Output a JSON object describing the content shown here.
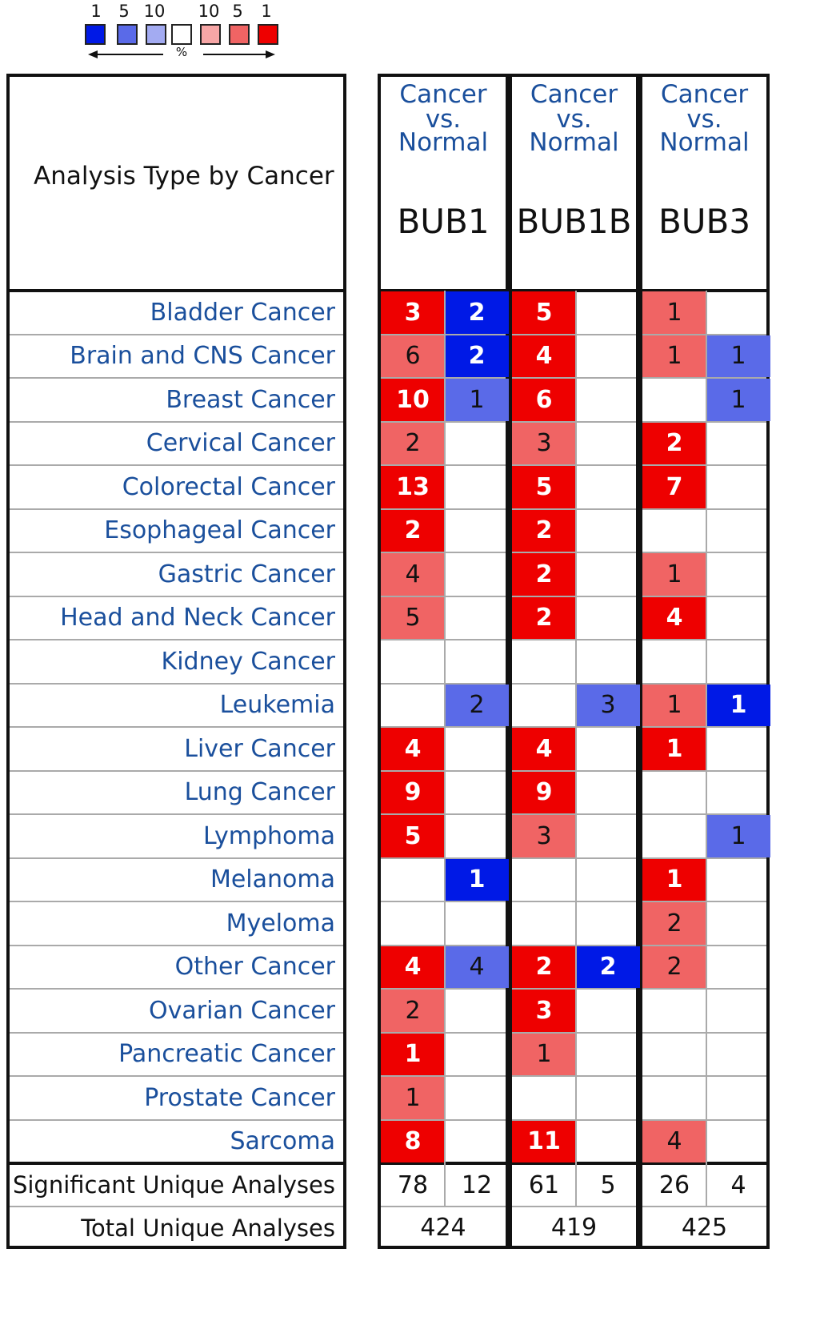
{
  "legend": {
    "left_numbers": [
      "1",
      "5",
      "10"
    ],
    "right_numbers": [
      "10",
      "5",
      "1"
    ],
    "axis_label": "%",
    "colors": [
      "#0019e6",
      "#5a6ae8",
      "#a3abf2",
      "#ffffff",
      "#f7a6a6",
      "#f06464",
      "#ee0000"
    ]
  },
  "header": {
    "title": "Analysis Type by Cancer",
    "columns": [
      {
        "line1": "Cancer",
        "line2": "vs.",
        "line3": "Normal",
        "gene": "BUB1"
      },
      {
        "line1": "Cancer",
        "line2": "vs.",
        "line3": "Normal",
        "gene": "BUB1B"
      },
      {
        "line1": "Cancer",
        "line2": "vs.",
        "line3": "Normal",
        "gene": "BUB3"
      }
    ]
  },
  "chart_data": {
    "type": "heatmap",
    "genes": [
      "BUB1",
      "BUB1B",
      "BUB3"
    ],
    "cell_colors": {
      "up_strong": "#ee0000",
      "up_medium": "#f06464",
      "down_strong": "#0019e6",
      "down_medium": "#5a6ae8"
    },
    "rows": [
      {
        "label": "Bladder Cancer",
        "cells": [
          [
            "3",
            "up_strong"
          ],
          [
            "2",
            "down_strong"
          ],
          [
            "5",
            "up_strong"
          ],
          [
            "",
            ""
          ],
          [
            "1",
            "up_medium"
          ],
          [
            "",
            ""
          ]
        ]
      },
      {
        "label": "Brain and CNS Cancer",
        "cells": [
          [
            "6",
            "up_medium"
          ],
          [
            "2",
            "down_strong"
          ],
          [
            "4",
            "up_strong"
          ],
          [
            "",
            ""
          ],
          [
            "1",
            "up_medium"
          ],
          [
            "1",
            "down_medium"
          ]
        ]
      },
      {
        "label": "Breast Cancer",
        "cells": [
          [
            "10",
            "up_strong"
          ],
          [
            "1",
            "down_medium"
          ],
          [
            "6",
            "up_strong"
          ],
          [
            "",
            ""
          ],
          [
            "",
            ""
          ],
          [
            "1",
            "down_medium"
          ]
        ]
      },
      {
        "label": "Cervical Cancer",
        "cells": [
          [
            "2",
            "up_medium"
          ],
          [
            "",
            ""
          ],
          [
            "3",
            "up_medium"
          ],
          [
            "",
            ""
          ],
          [
            "2",
            "up_strong"
          ],
          [
            "",
            ""
          ]
        ]
      },
      {
        "label": "Colorectal Cancer",
        "cells": [
          [
            "13",
            "up_strong"
          ],
          [
            "",
            ""
          ],
          [
            "5",
            "up_strong"
          ],
          [
            "",
            ""
          ],
          [
            "7",
            "up_strong"
          ],
          [
            "",
            ""
          ]
        ]
      },
      {
        "label": "Esophageal Cancer",
        "cells": [
          [
            "2",
            "up_strong"
          ],
          [
            "",
            ""
          ],
          [
            "2",
            "up_strong"
          ],
          [
            "",
            ""
          ],
          [
            "",
            ""
          ],
          [
            "",
            ""
          ]
        ]
      },
      {
        "label": "Gastric Cancer",
        "cells": [
          [
            "4",
            "up_medium"
          ],
          [
            "",
            ""
          ],
          [
            "2",
            "up_strong"
          ],
          [
            "",
            ""
          ],
          [
            "1",
            "up_medium"
          ],
          [
            "",
            ""
          ]
        ]
      },
      {
        "label": "Head and Neck Cancer",
        "cells": [
          [
            "5",
            "up_medium"
          ],
          [
            "",
            ""
          ],
          [
            "2",
            "up_strong"
          ],
          [
            "",
            ""
          ],
          [
            "4",
            "up_strong"
          ],
          [
            "",
            ""
          ]
        ]
      },
      {
        "label": "Kidney Cancer",
        "cells": [
          [
            "",
            ""
          ],
          [
            "",
            ""
          ],
          [
            "",
            ""
          ],
          [
            "",
            ""
          ],
          [
            "",
            ""
          ],
          [
            "",
            ""
          ]
        ]
      },
      {
        "label": "Leukemia",
        "cells": [
          [
            "",
            ""
          ],
          [
            "2",
            "down_medium"
          ],
          [
            "",
            ""
          ],
          [
            "3",
            "down_medium"
          ],
          [
            "1",
            "up_medium"
          ],
          [
            "1",
            "down_strong"
          ]
        ]
      },
      {
        "label": "Liver Cancer",
        "cells": [
          [
            "4",
            "up_strong"
          ],
          [
            "",
            ""
          ],
          [
            "4",
            "up_strong"
          ],
          [
            "",
            ""
          ],
          [
            "1",
            "up_strong"
          ],
          [
            "",
            ""
          ]
        ]
      },
      {
        "label": "Lung Cancer",
        "cells": [
          [
            "9",
            "up_strong"
          ],
          [
            "",
            ""
          ],
          [
            "9",
            "up_strong"
          ],
          [
            "",
            ""
          ],
          [
            "",
            ""
          ],
          [
            "",
            ""
          ]
        ]
      },
      {
        "label": "Lymphoma",
        "cells": [
          [
            "5",
            "up_strong"
          ],
          [
            "",
            ""
          ],
          [
            "3",
            "up_medium"
          ],
          [
            "",
            ""
          ],
          [
            "",
            ""
          ],
          [
            "1",
            "down_medium"
          ]
        ]
      },
      {
        "label": "Melanoma",
        "cells": [
          [
            "",
            ""
          ],
          [
            "1",
            "down_strong"
          ],
          [
            "",
            ""
          ],
          [
            "",
            ""
          ],
          [
            "1",
            "up_strong"
          ],
          [
            "",
            ""
          ]
        ]
      },
      {
        "label": "Myeloma",
        "cells": [
          [
            "",
            ""
          ],
          [
            "",
            ""
          ],
          [
            "",
            ""
          ],
          [
            "",
            ""
          ],
          [
            "2",
            "up_medium"
          ],
          [
            "",
            ""
          ]
        ]
      },
      {
        "label": "Other Cancer",
        "cells": [
          [
            "4",
            "up_strong"
          ],
          [
            "4",
            "down_medium"
          ],
          [
            "2",
            "up_strong"
          ],
          [
            "2",
            "down_strong"
          ],
          [
            "2",
            "up_medium"
          ],
          [
            "",
            ""
          ]
        ]
      },
      {
        "label": "Ovarian Cancer",
        "cells": [
          [
            "2",
            "up_medium"
          ],
          [
            "",
            ""
          ],
          [
            "3",
            "up_strong"
          ],
          [
            "",
            ""
          ],
          [
            "",
            ""
          ],
          [
            "",
            ""
          ]
        ]
      },
      {
        "label": "Pancreatic Cancer",
        "cells": [
          [
            "1",
            "up_strong"
          ],
          [
            "",
            ""
          ],
          [
            "1",
            "up_medium"
          ],
          [
            "",
            ""
          ],
          [
            "",
            ""
          ],
          [
            "",
            ""
          ]
        ]
      },
      {
        "label": "Prostate Cancer",
        "cells": [
          [
            "1",
            "up_medium"
          ],
          [
            "",
            ""
          ],
          [
            "",
            ""
          ],
          [
            "",
            ""
          ],
          [
            "",
            ""
          ],
          [
            "",
            ""
          ]
        ]
      },
      {
        "label": "Sarcoma",
        "cells": [
          [
            "8",
            "up_strong"
          ],
          [
            "",
            ""
          ],
          [
            "11",
            "up_strong"
          ],
          [
            "",
            ""
          ],
          [
            "4",
            "up_medium"
          ],
          [
            "",
            ""
          ]
        ]
      }
    ],
    "significant_label": "Significant Unique Analyses",
    "significant": [
      "78",
      "12",
      "61",
      "5",
      "26",
      "4"
    ],
    "total_label": "Total Unique Analyses",
    "total": [
      "424",
      "419",
      "425"
    ]
  }
}
